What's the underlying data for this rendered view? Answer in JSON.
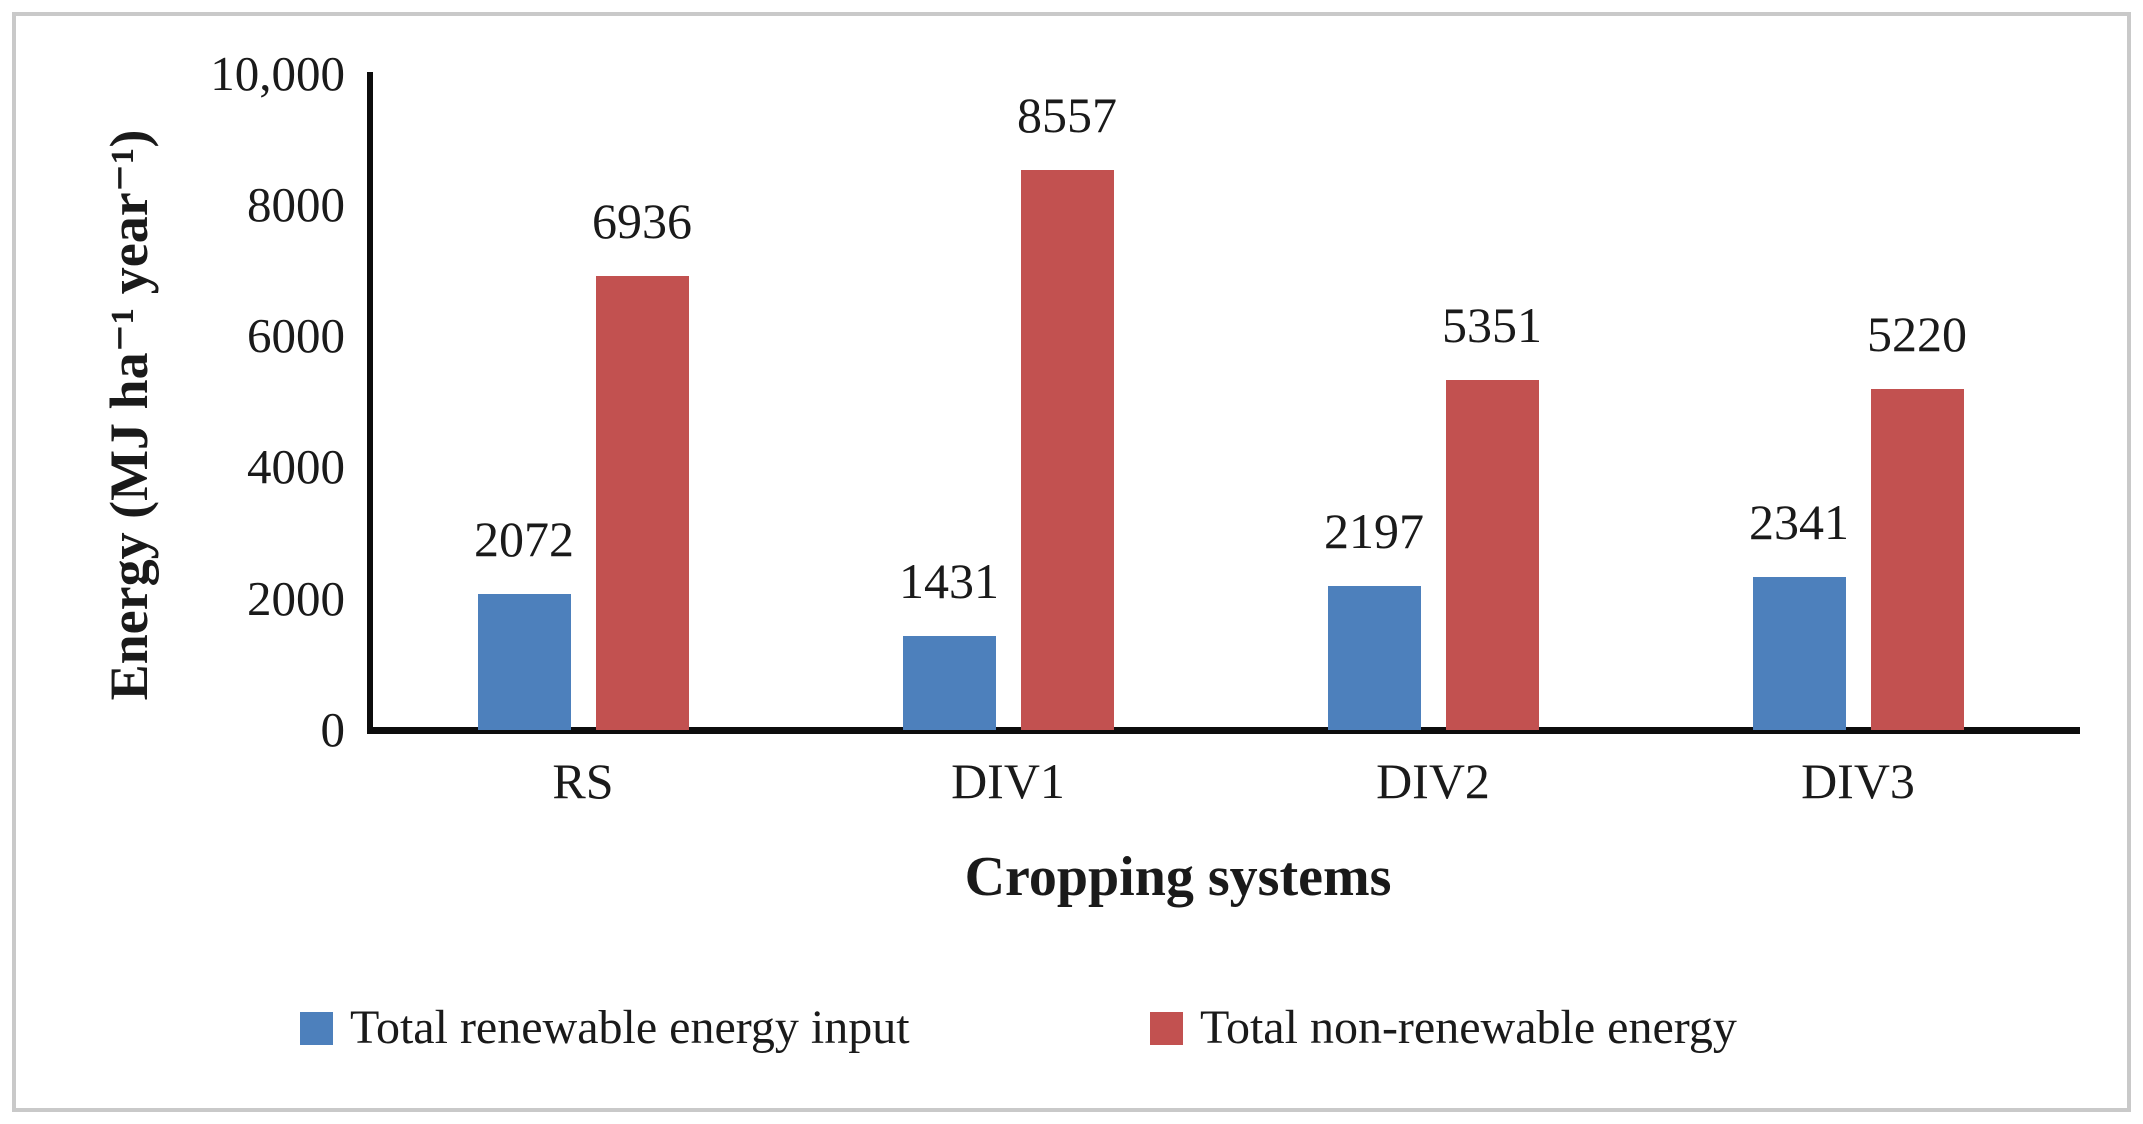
{
  "figure": {
    "border_color": "#c9c9c9",
    "background": "#ffffff",
    "text_color": "#1a1a1a",
    "axis_color": "#0d0d0d"
  },
  "chart_data": {
    "type": "bar",
    "title": "",
    "categories": [
      "RS",
      "DIV1",
      "DIV2",
      "DIV3"
    ],
    "series": [
      {
        "name": "Total renewable energy input",
        "color": "#4d80bc",
        "values": [
          2072,
          1431,
          2197,
          2341
        ]
      },
      {
        "name": "Total non-renewable energy",
        "color": "#c25150",
        "values": [
          6936,
          8557,
          5351,
          5220
        ]
      }
    ],
    "xlabel": "Cropping systems",
    "ylabel": "Energy (MJ ha⁻¹ year⁻¹)",
    "ylim": [
      0,
      10000
    ],
    "ytick_step": 2000,
    "yticks": [
      "0",
      "2000",
      "4000",
      "6000",
      "8000",
      "10,000"
    ],
    "grid": false,
    "legend_position": "bottom",
    "data_labels": true
  }
}
